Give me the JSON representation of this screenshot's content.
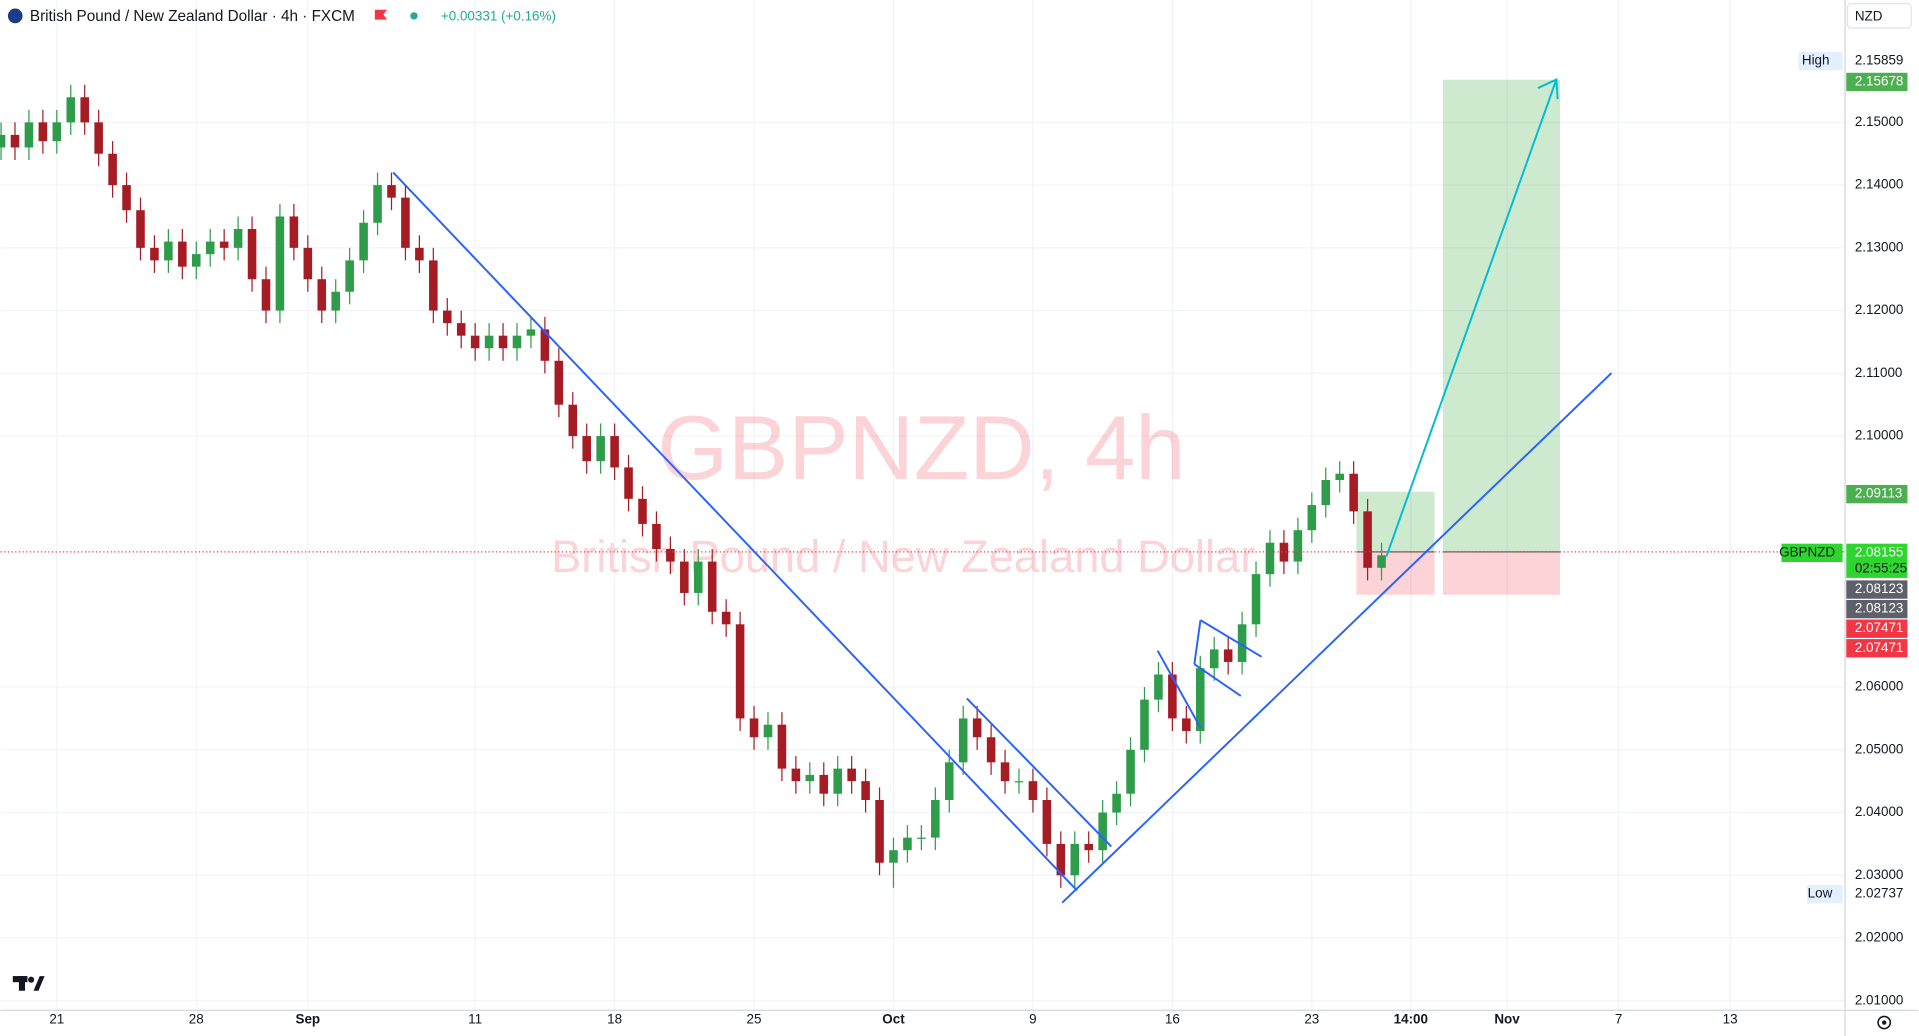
{
  "chart_data": {
    "type": "candlestick",
    "title": "British Pound / New Zealand Dollar · 4h · FXCM",
    "change": "+0.00331 (+0.16%)",
    "currency": "NZD",
    "watermark": "GBPNZD, 4h",
    "watermark_subtitle": "British Pound / New Zealand Dollar",
    "up_color": "#2e9c4a",
    "down_color": "#a51c24",
    "grid": true,
    "xlim": [
      -2.0175,
      64.12
    ],
    "ylim": [
      2.00848,
      2.1695
    ],
    "xticks": [
      {
        "value": 0,
        "label": "21"
      },
      {
        "value": 5,
        "label": "28"
      },
      {
        "value": 9,
        "label": "Sep"
      },
      {
        "value": 15,
        "label": "11"
      },
      {
        "value": 20,
        "label": "18"
      },
      {
        "value": 25,
        "label": "25"
      },
      {
        "value": 30,
        "label": "Oct"
      },
      {
        "value": 35,
        "label": "9"
      },
      {
        "value": 40,
        "label": "16"
      },
      {
        "value": 45,
        "label": "23"
      },
      {
        "value": 48.55,
        "label": "14:00"
      },
      {
        "value": 52,
        "label": "Nov"
      },
      {
        "value": 56,
        "label": "7"
      },
      {
        "value": 60,
        "label": "13"
      }
    ],
    "yticks": [
      {
        "value": 2.15,
        "label": "2.15000"
      },
      {
        "value": 2.14,
        "label": "2.14000"
      },
      {
        "value": 2.13,
        "label": "2.13000"
      },
      {
        "value": 2.12,
        "label": "2.12000"
      },
      {
        "value": 2.11,
        "label": "2.11000"
      },
      {
        "value": 2.1,
        "label": "2.10000"
      },
      {
        "value": 2.06,
        "label": "2.06000"
      },
      {
        "value": 2.05,
        "label": "2.05000"
      },
      {
        "value": 2.04,
        "label": "2.04000"
      },
      {
        "value": 2.03,
        "label": "2.03000"
      },
      {
        "value": 2.02,
        "label": "2.02000"
      },
      {
        "value": 2.01,
        "label": "2.01000"
      }
    ],
    "x": [
      -2,
      -1.5,
      -1,
      -0.5,
      0,
      0.5,
      1,
      1.5,
      2,
      2.5,
      3,
      3.5,
      4,
      4.5,
      5,
      5.5,
      6,
      6.5,
      7,
      7.5,
      8,
      8.5,
      9,
      9.5,
      10,
      10.5,
      11,
      11.5,
      12,
      12.5,
      13,
      13.5,
      14,
      14.5,
      15,
      15.5,
      16,
      16.5,
      17,
      17.5,
      18,
      18.5,
      19,
      19.5,
      20,
      20.5,
      21,
      21.5,
      22,
      22.5,
      23,
      23.5,
      24,
      24.5,
      25,
      25.5,
      26,
      26.5,
      27,
      27.5,
      28,
      28.5,
      29,
      29.5,
      30,
      30.5,
      31,
      31.5,
      32,
      32.5,
      33,
      33.5,
      34,
      34.5,
      35,
      35.5,
      36,
      36.5,
      37,
      37.5,
      38,
      38.5,
      39,
      39.5,
      40,
      40.5,
      41,
      41.5,
      42,
      42.5,
      43,
      43.5,
      44,
      44.5,
      45,
      45.5,
      46,
      46.5,
      47,
      47.5
    ],
    "open": [
      2.146,
      2.148,
      2.146,
      2.15,
      2.147,
      2.15,
      2.154,
      2.15,
      2.145,
      2.14,
      2.136,
      2.13,
      2.128,
      2.131,
      2.127,
      2.129,
      2.131,
      2.13,
      2.133,
      2.125,
      2.12,
      2.135,
      2.13,
      2.125,
      2.12,
      2.123,
      2.128,
      2.134,
      2.14,
      2.138,
      2.13,
      2.128,
      2.12,
      2.118,
      2.116,
      2.114,
      2.116,
      2.114,
      2.116,
      2.117,
      2.112,
      2.105,
      2.1,
      2.096,
      2.1,
      2.095,
      2.09,
      2.086,
      2.082,
      2.08,
      2.075,
      2.08,
      2.072,
      2.07,
      2.055,
      2.052,
      2.054,
      2.047,
      2.045,
      2.046,
      2.043,
      2.047,
      2.045,
      2.042,
      2.032,
      2.034,
      2.036,
      2.036,
      2.042,
      2.048,
      2.055,
      2.052,
      2.048,
      2.045,
      2.045,
      2.042,
      2.035,
      2.03,
      2.035,
      2.034,
      2.04,
      2.043,
      2.05,
      2.058,
      2.062,
      2.055,
      2.053,
      2.063,
      2.066,
      2.064,
      2.07,
      2.078,
      2.083,
      2.08,
      2.085,
      2.089,
      2.093,
      2.094,
      2.088,
      2.079
    ],
    "high": [
      2.15,
      2.15,
      2.152,
      2.152,
      2.152,
      2.156,
      2.156,
      2.152,
      2.147,
      2.142,
      2.138,
      2.132,
      2.133,
      2.133,
      2.131,
      2.133,
      2.133,
      2.135,
      2.135,
      2.127,
      2.137,
      2.137,
      2.132,
      2.127,
      2.125,
      2.13,
      2.136,
      2.142,
      2.142,
      2.14,
      2.132,
      2.13,
      2.122,
      2.12,
      2.118,
      2.118,
      2.118,
      2.118,
      2.119,
      2.119,
      2.114,
      2.107,
      2.102,
      2.102,
      2.102,
      2.097,
      2.092,
      2.088,
      2.084,
      2.082,
      2.082,
      2.082,
      2.074,
      2.072,
      2.057,
      2.056,
      2.056,
      2.049,
      2.048,
      2.048,
      2.049,
      2.049,
      2.047,
      2.044,
      2.036,
      2.038,
      2.038,
      2.044,
      2.05,
      2.057,
      2.057,
      2.054,
      2.05,
      2.047,
      2.047,
      2.044,
      2.037,
      2.037,
      2.037,
      2.042,
      2.045,
      2.052,
      2.06,
      2.064,
      2.064,
      2.057,
      2.065,
      2.068,
      2.068,
      2.072,
      2.08,
      2.085,
      2.085,
      2.087,
      2.091,
      2.095,
      2.096,
      2.096,
      2.09,
      2.083
    ],
    "low": [
      2.144,
      2.144,
      2.144,
      2.145,
      2.145,
      2.148,
      2.148,
      2.143,
      2.138,
      2.134,
      2.128,
      2.126,
      2.126,
      2.125,
      2.125,
      2.127,
      2.128,
      2.128,
      2.123,
      2.118,
      2.118,
      2.128,
      2.123,
      2.118,
      2.118,
      2.121,
      2.126,
      2.132,
      2.136,
      2.128,
      2.126,
      2.118,
      2.116,
      2.114,
      2.112,
      2.112,
      2.112,
      2.112,
      2.114,
      2.11,
      2.103,
      2.098,
      2.094,
      2.094,
      2.093,
      2.088,
      2.084,
      2.08,
      2.078,
      2.073,
      2.073,
      2.07,
      2.068,
      2.053,
      2.05,
      2.05,
      2.045,
      2.043,
      2.043,
      2.041,
      2.041,
      2.043,
      2.04,
      2.03,
      2.028,
      2.032,
      2.034,
      2.034,
      2.04,
      2.046,
      2.05,
      2.046,
      2.043,
      2.043,
      2.04,
      2.033,
      2.028,
      2.028,
      2.032,
      2.032,
      2.038,
      2.041,
      2.048,
      2.056,
      2.053,
      2.051,
      2.051,
      2.061,
      2.062,
      2.062,
      2.068,
      2.076,
      2.078,
      2.078,
      2.083,
      2.087,
      2.091,
      2.086,
      2.077,
      2.077
    ],
    "close": [
      2.148,
      2.146,
      2.15,
      2.147,
      2.15,
      2.154,
      2.15,
      2.145,
      2.14,
      2.136,
      2.13,
      2.128,
      2.131,
      2.127,
      2.129,
      2.131,
      2.13,
      2.133,
      2.125,
      2.12,
      2.135,
      2.13,
      2.125,
      2.12,
      2.123,
      2.128,
      2.134,
      2.14,
      2.138,
      2.13,
      2.128,
      2.12,
      2.118,
      2.116,
      2.114,
      2.116,
      2.114,
      2.116,
      2.117,
      2.112,
      2.105,
      2.1,
      2.096,
      2.1,
      2.095,
      2.09,
      2.086,
      2.082,
      2.08,
      2.075,
      2.08,
      2.072,
      2.07,
      2.055,
      2.052,
      2.054,
      2.047,
      2.045,
      2.046,
      2.043,
      2.047,
      2.045,
      2.042,
      2.032,
      2.034,
      2.036,
      2.036,
      2.042,
      2.048,
      2.055,
      2.052,
      2.048,
      2.045,
      2.045,
      2.042,
      2.035,
      2.03,
      2.035,
      2.034,
      2.04,
      2.043,
      2.05,
      2.058,
      2.062,
      2.055,
      2.053,
      2.063,
      2.066,
      2.064,
      2.07,
      2.078,
      2.083,
      2.08,
      2.085,
      2.089,
      2.093,
      2.094,
      2.088,
      2.079,
      2.081
    ],
    "positions": [
      {
        "start": 46.6,
        "end": 49.4,
        "entry": 2.08155,
        "target": 2.09113,
        "stop": 2.07471
      },
      {
        "start": 49.7,
        "end": 53.9,
        "entry": 2.08155,
        "target": 2.15678,
        "stop": 2.07471
      }
    ],
    "price_tags": [
      {
        "name": "High",
        "value": 2.15859
      },
      {
        "value": 2.15678,
        "color": "#4caf50"
      },
      {
        "value": 2.09113,
        "color": "#4caf50"
      },
      {
        "name": "GBPNZD",
        "value": 2.08155,
        "countdown": "02:55:25",
        "color": "#2fd52f"
      },
      {
        "value": 2.08123,
        "color": "#5d606b"
      },
      {
        "value": 2.08123,
        "color": "#5d606b"
      },
      {
        "value": 2.07471,
        "color": "#f23645"
      },
      {
        "value": 2.07471,
        "color": "#f23645"
      },
      {
        "name": "Low",
        "value": 2.02737
      }
    ]
  }
}
